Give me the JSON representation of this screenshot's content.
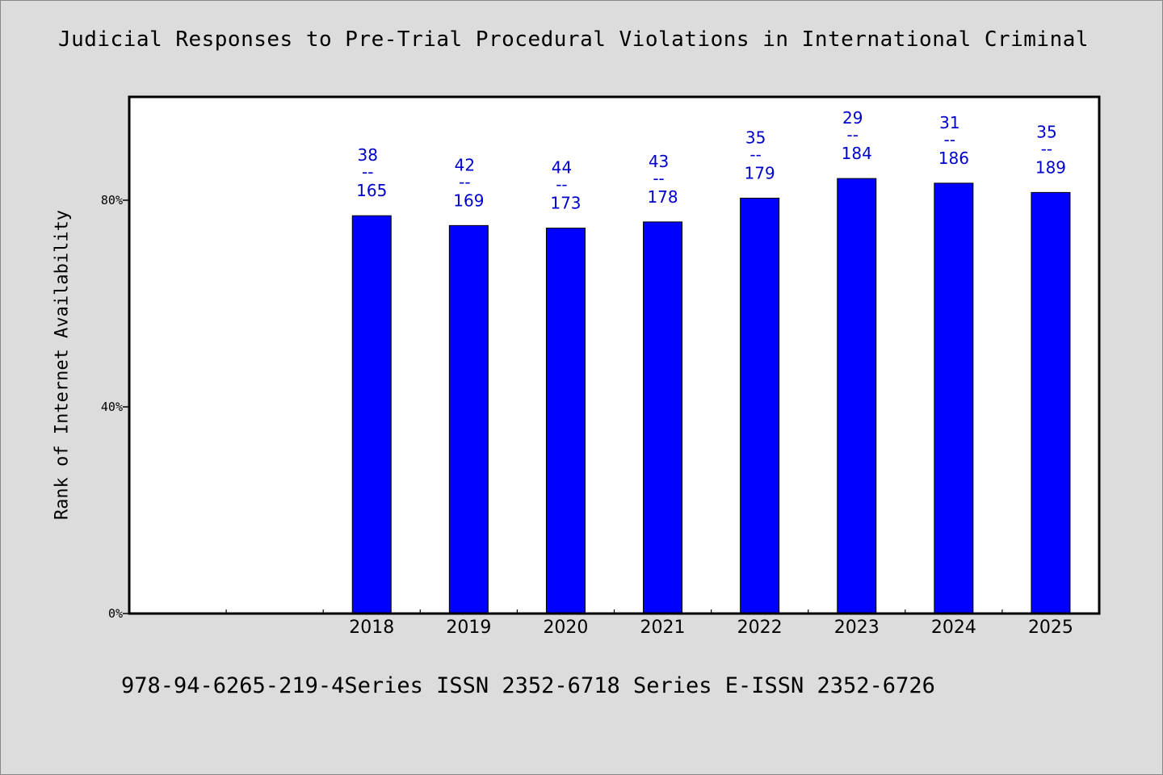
{
  "chart_data": {
    "type": "bar",
    "title": "Judicial Responses to Pre-Trial Procedural Violations in International Criminal",
    "ylabel": "Rank of Internet Availability",
    "xlabel": "",
    "footer": "978-94-6265-219-4Series ISSN 2352-6718 Series E-ISSN 2352-6726",
    "y_ticks": [
      "0%",
      "40%",
      "80%"
    ],
    "y_tick_values": [
      0,
      40,
      80
    ],
    "ylim": [
      0,
      100
    ],
    "categories": [
      "2018",
      "2019",
      "2020",
      "2021",
      "2022",
      "2023",
      "2024",
      "2025"
    ],
    "category_slots": [
      "",
      "",
      "2018",
      "2019",
      "2020",
      "2021",
      "2022",
      "2023",
      "2024",
      "2025"
    ],
    "values": [
      77.0,
      75.1,
      74.6,
      75.8,
      80.4,
      84.2,
      83.3,
      81.5
    ],
    "bar_labels": [
      {
        "top": "38",
        "sep": "--",
        "bottom": "165"
      },
      {
        "top": "42",
        "sep": "--",
        "bottom": "169"
      },
      {
        "top": "44",
        "sep": "--",
        "bottom": "173"
      },
      {
        "top": "43",
        "sep": "--",
        "bottom": "178"
      },
      {
        "top": "35",
        "sep": "--",
        "bottom": "179"
      },
      {
        "top": "29",
        "sep": "--",
        "bottom": "184"
      },
      {
        "top": "31",
        "sep": "--",
        "bottom": "186"
      },
      {
        "top": "35",
        "sep": "--",
        "bottom": "189"
      }
    ],
    "colors": {
      "bar": "#0000ff",
      "bar_label": "#0000cc",
      "background": "#dcdcdc",
      "plot": "#ffffff"
    },
    "grid": false
  }
}
